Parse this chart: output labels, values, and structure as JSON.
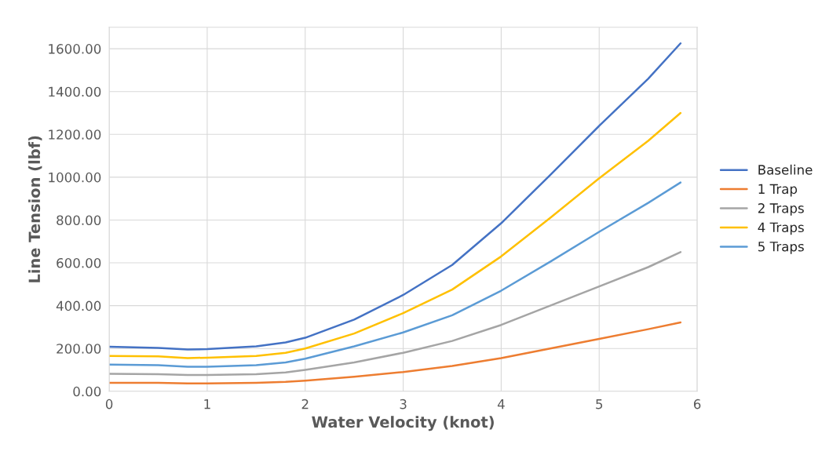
{
  "chart_data": {
    "type": "line",
    "xlabel": "Water Velocity (knot)",
    "ylabel": "Line Tension (lbf)",
    "xlim": [
      0,
      6
    ],
    "xticks": [
      0,
      1,
      2,
      3,
      4,
      5,
      6
    ],
    "ylim": [
      0,
      1700
    ],
    "yticks": [
      {
        "value": 0,
        "label": "0.00"
      },
      {
        "value": 200,
        "label": "200.00"
      },
      {
        "value": 400,
        "label": "400.00"
      },
      {
        "value": 600,
        "label": "600.00"
      },
      {
        "value": 800,
        "label": "800.00"
      },
      {
        "value": 1000,
        "label": "1000.00"
      },
      {
        "value": 1200,
        "label": "1200.00"
      },
      {
        "value": 1400,
        "label": "1400.00"
      },
      {
        "value": 1600,
        "label": "1600.00"
      }
    ],
    "grid": true,
    "legend": "right",
    "x": [
      0,
      0.5,
      0.8,
      1.0,
      1.5,
      1.8,
      2.0,
      2.5,
      3.0,
      3.5,
      4.0,
      4.5,
      5.0,
      5.5,
      5.83
    ],
    "series": [
      {
        "name": "Baseline",
        "color": "#4472c4",
        "values": [
          208,
          203,
          195,
          197,
          210,
          228,
          250,
          335,
          450,
          590,
          785,
          1010,
          1240,
          1460,
          1625
        ]
      },
      {
        "name": "1 Trap",
        "color": "#ed7d31",
        "values": [
          40,
          40,
          37,
          37,
          40,
          44,
          50,
          68,
          90,
          118,
          155,
          200,
          245,
          290,
          322
        ]
      },
      {
        "name": "2 Traps",
        "color": "#a5a5a5",
        "values": [
          82,
          80,
          76,
          76,
          80,
          88,
          100,
          135,
          180,
          235,
          310,
          400,
          490,
          580,
          650
        ]
      },
      {
        "name": "4 Traps",
        "color": "#ffc000",
        "values": [
          165,
          163,
          155,
          157,
          165,
          180,
          200,
          270,
          365,
          475,
          630,
          810,
          995,
          1170,
          1300
        ]
      },
      {
        "name": "5 Traps",
        "color": "#5b9bd5",
        "values": [
          125,
          122,
          115,
          115,
          122,
          135,
          152,
          210,
          275,
          355,
          470,
          605,
          745,
          880,
          975
        ]
      }
    ]
  }
}
